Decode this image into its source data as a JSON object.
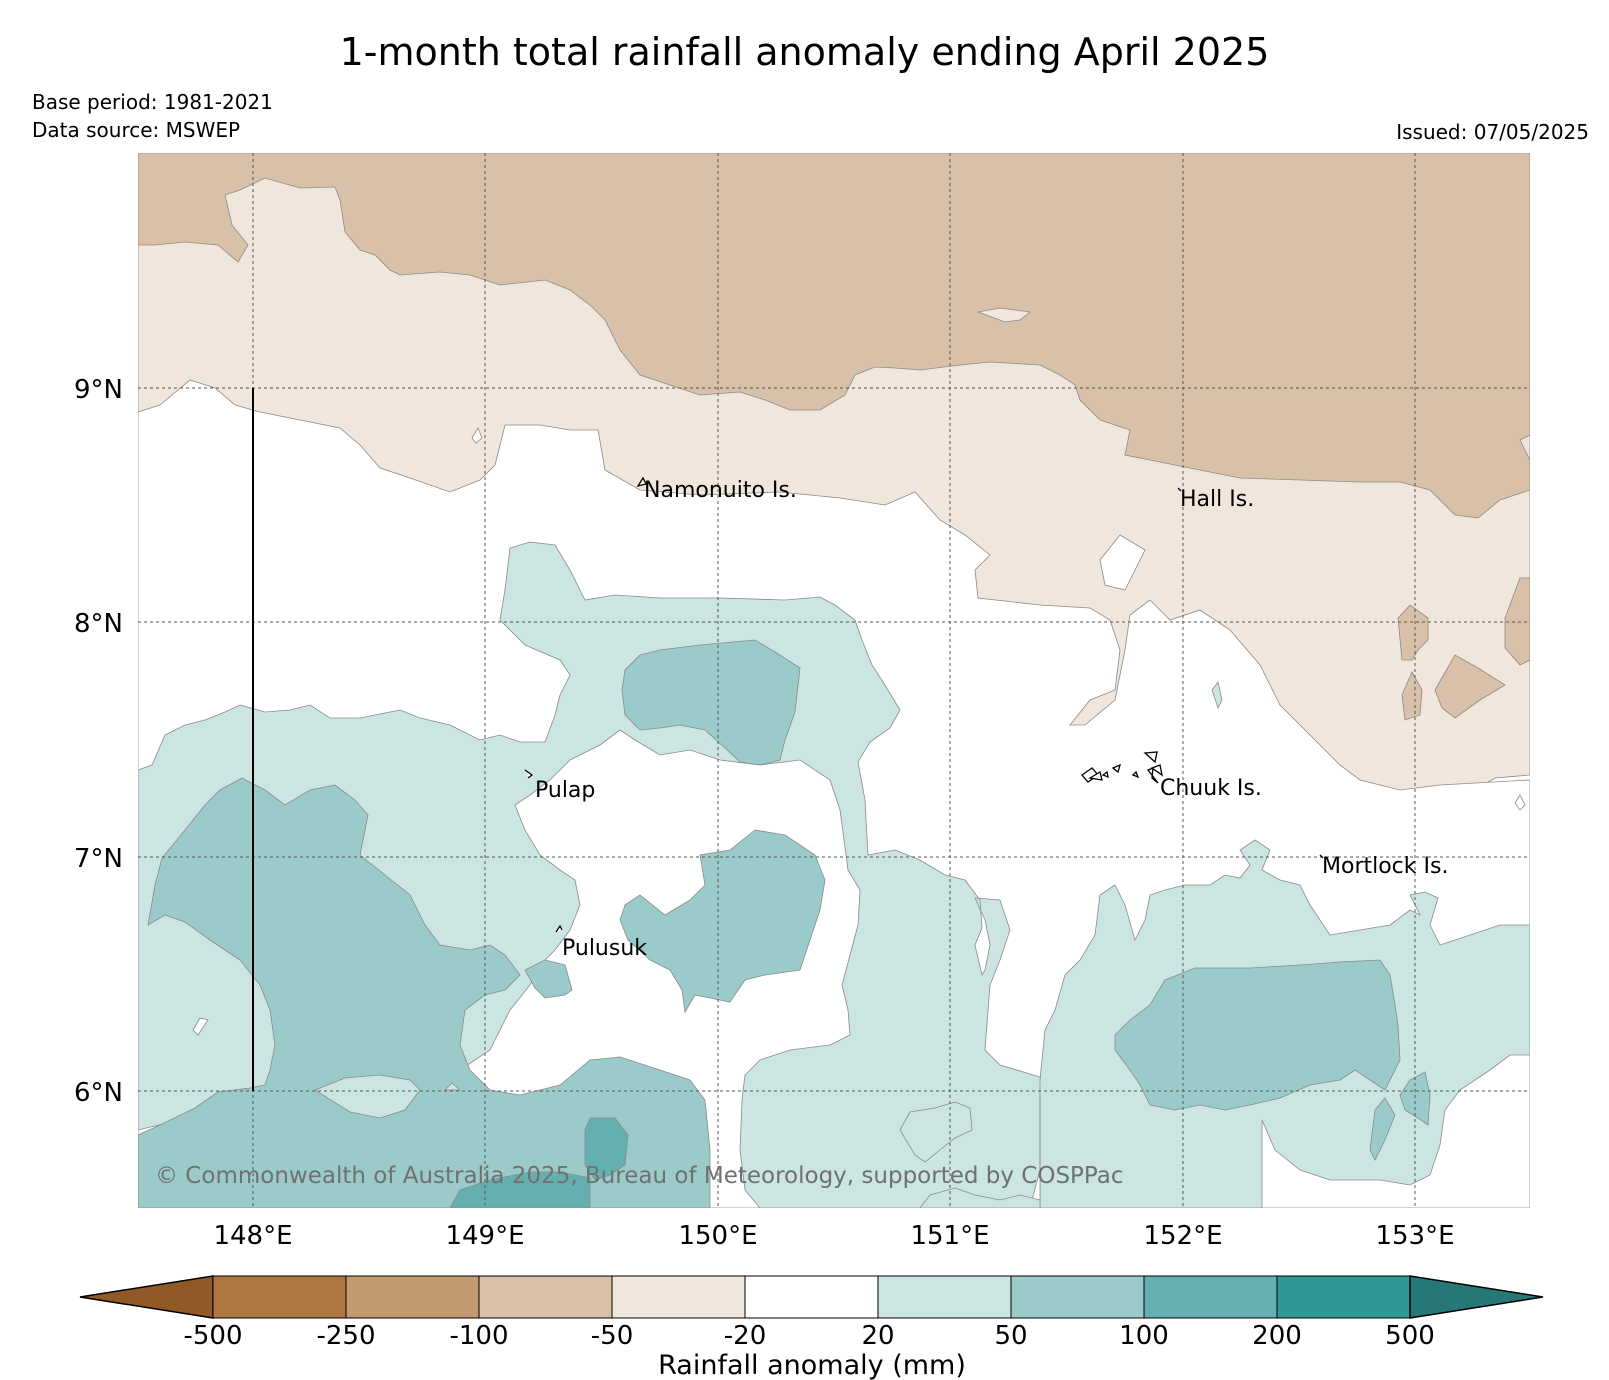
{
  "header": {
    "title": "1-month total rainfall anomaly ending April 2025",
    "base_period": "Base period: 1981-2021",
    "data_source": "Data source: MSWEP",
    "issued": "Issued: 07/05/2025"
  },
  "map": {
    "latitude_labels": [
      "9°N",
      "8°N",
      "7°N",
      "6°N"
    ],
    "longitude_labels": [
      "148°E",
      "149°E",
      "150°E",
      "151°E",
      "152°E",
      "153°E"
    ],
    "places": {
      "namonuito": "Namonuito Is.",
      "hall": "Hall Is.",
      "pulap": "Pulap",
      "chuuk": "Chuuk Is.",
      "mortlock": "Mortlock Is.",
      "pulusuk": "Pulusuk"
    },
    "copyright": "© Commonwealth of Australia 2025, Bureau of Meteorology, supported by COSPPac"
  },
  "colorbar": {
    "title": "Rainfall anomaly (mm)",
    "tick_labels": [
      "-500",
      "-250",
      "-100",
      "-50",
      "-20",
      "20",
      "50",
      "100",
      "200",
      "500"
    ],
    "colors": {
      "below_min": "#8f5a26",
      "bin_1": "#ad773f",
      "bin_2": "#c39a70",
      "bin_3": "#d9c1a9",
      "bin_4": "#f0e6dc",
      "bin_5": "#ffffff",
      "bin_6": "#cbe5e3",
      "bin_7": "#9acbca",
      "bin_8": "#64b0b0",
      "bin_9": "#2f9996",
      "above_max": "#267877"
    }
  }
}
